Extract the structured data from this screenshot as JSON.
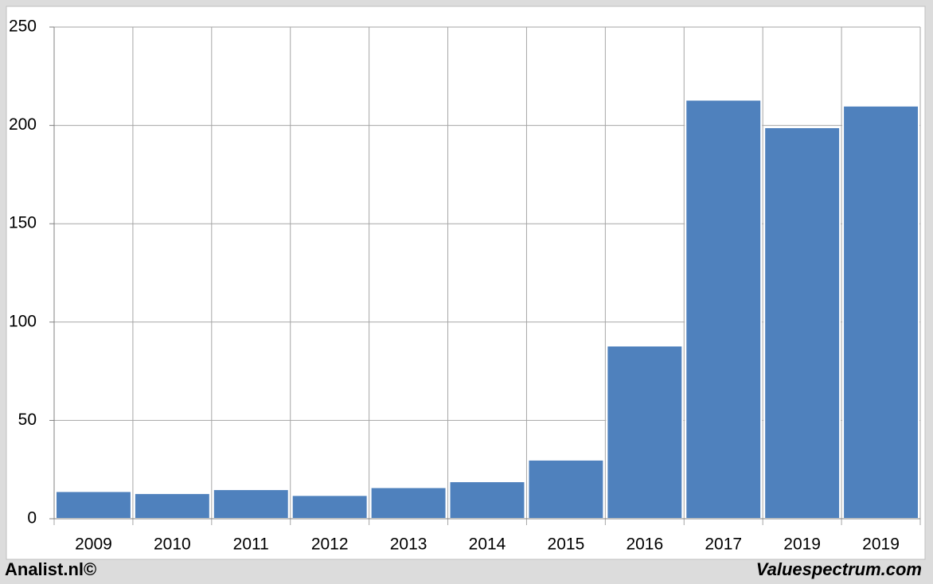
{
  "chart_data": {
    "type": "bar",
    "categories": [
      "2009",
      "2010",
      "2011",
      "2012",
      "2013",
      "2014",
      "2015",
      "2016",
      "2017",
      "2019",
      "2019"
    ],
    "values": [
      14,
      13,
      15,
      12,
      16,
      19,
      30,
      88,
      213,
      199,
      210
    ],
    "color": "#4f81bd",
    "ylim": [
      0,
      250
    ],
    "yticks": [
      0,
      50,
      100,
      150,
      200,
      250
    ],
    "grid": true
  },
  "footer": {
    "left": "Analist.nl©",
    "right": "Valuespectrum.com"
  }
}
